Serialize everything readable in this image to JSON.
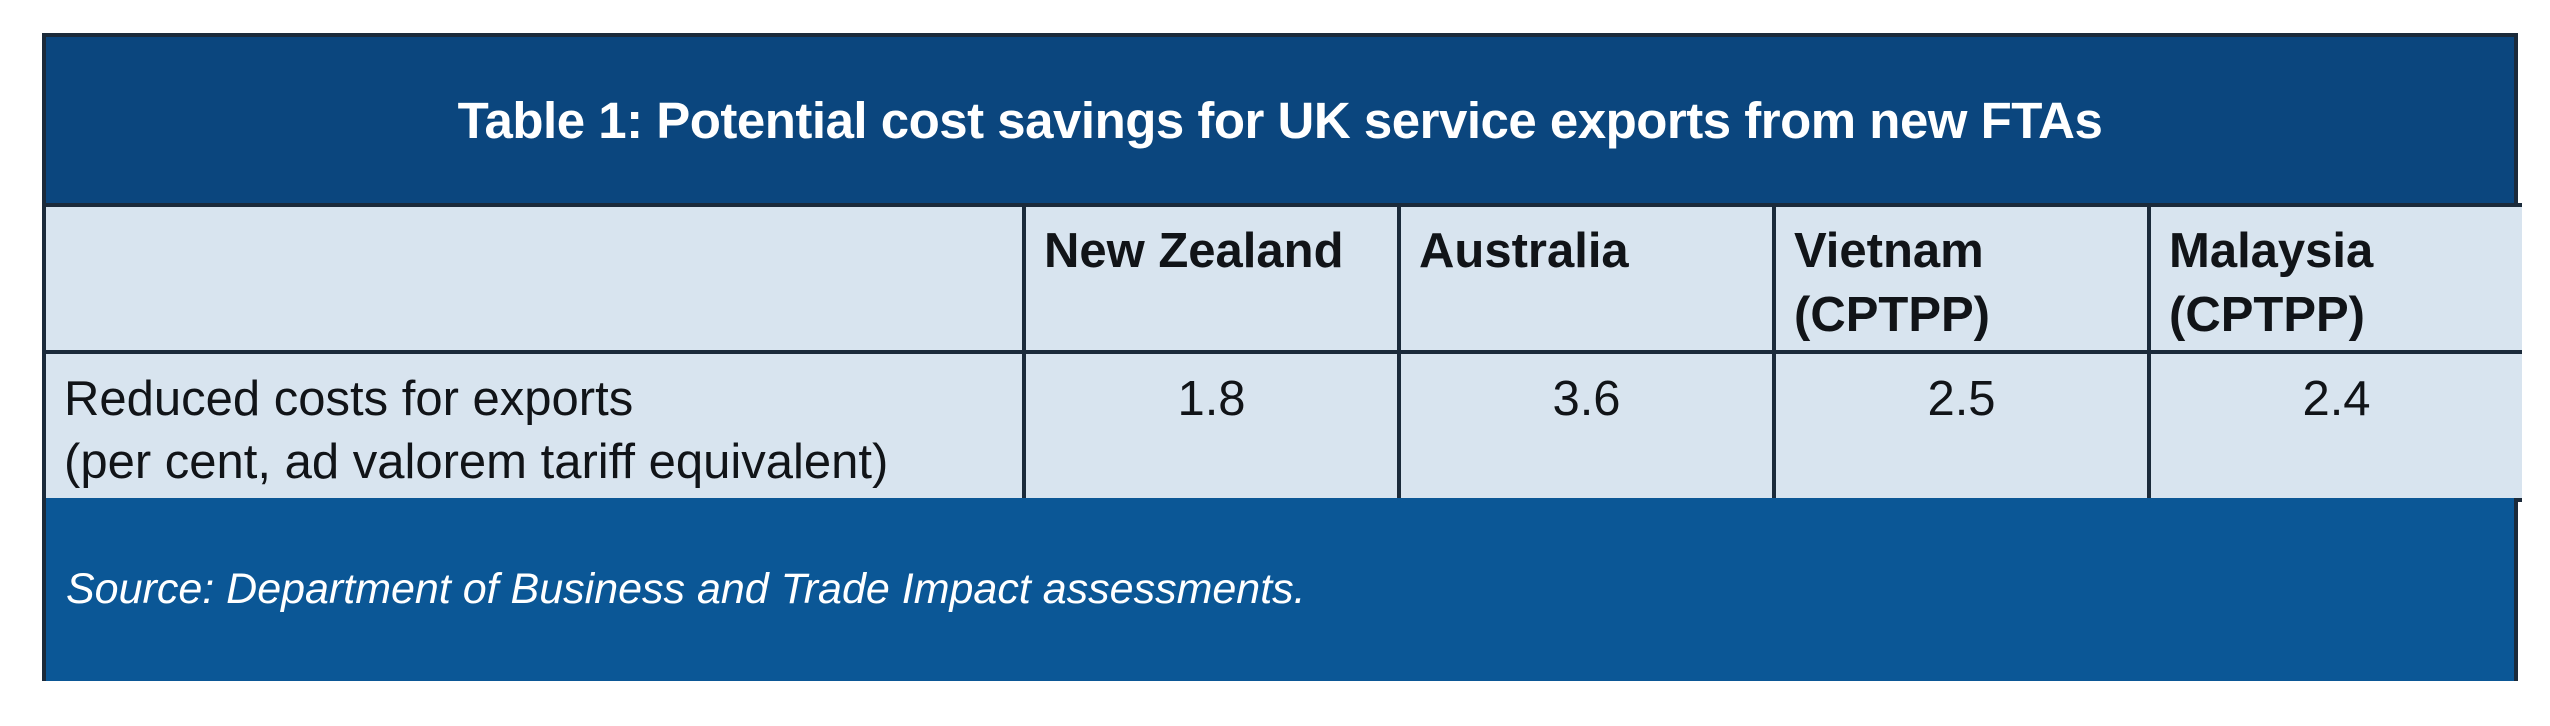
{
  "table": {
    "title": "Table 1: Potential cost savings for UK service exports from new FTAs",
    "columns": [
      {
        "line1": "New Zealand",
        "line2": ""
      },
      {
        "line1": "Australia",
        "line2": ""
      },
      {
        "line1": "Vietnam",
        "line2": "(CPTPP)"
      },
      {
        "line1": "Malaysia",
        "line2": "(CPTPP)"
      }
    ],
    "row": {
      "label_line1": "Reduced costs for exports",
      "label_line2": "(per cent, ad valorem tariff equivalent)",
      "values": [
        "1.8",
        "3.6",
        "2.5",
        "2.4"
      ]
    },
    "source": "Source: Department of Business and Trade Impact assessments."
  },
  "colors": {
    "title_background": "#0b467e",
    "source_background": "#0b5796",
    "cell_background": "#d8e4ef",
    "border": "#1b2a3a"
  }
}
